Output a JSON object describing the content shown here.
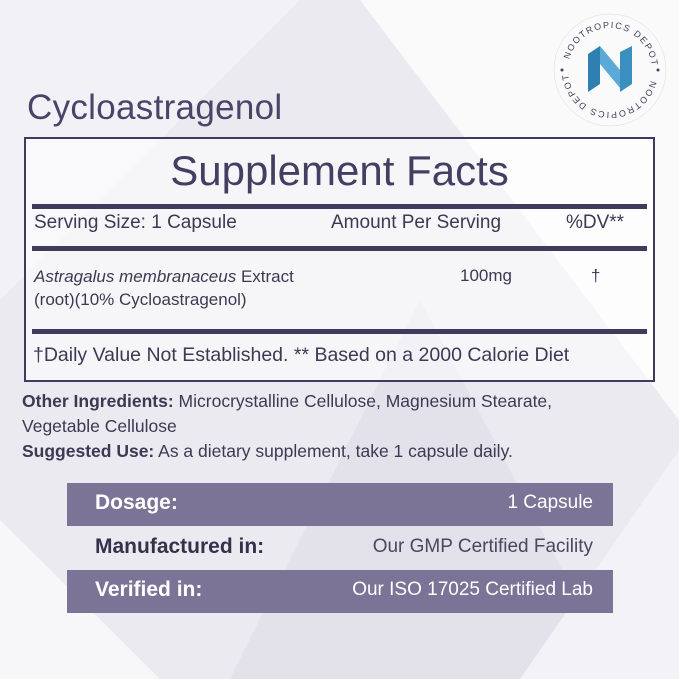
{
  "product_name": "Cycloastragenol",
  "brand_logo": {
    "text": "NOOTROPICS DEPOT",
    "icon": "nootropics-depot-n-logo",
    "color": "#3b8fc0"
  },
  "facts": {
    "title": "Supplement Facts",
    "serving_size": "Serving Size: 1 Capsule",
    "amount_header": "Amount Per Serving",
    "dv_header": "%DV**",
    "ingredient": {
      "name_italic": "Astragalus membranaceus",
      "name_rest": " Extract",
      "detail": "(root)(10% Cycloastragenol)",
      "amount": "100mg",
      "dv": "†"
    },
    "footnote": "†Daily Value Not Established. ** Based on a 2000 Calorie Diet"
  },
  "other_ingredients": {
    "label": "Other Ingredients:",
    "line1": " Microcrystalline Cellulose, Magnesium Stearate,",
    "line2": "Vegetable Cellulose"
  },
  "suggested_use": {
    "label": "Suggested Use:",
    "text": " As a dietary supplement, take 1 capsule daily."
  },
  "info_rows": [
    {
      "label": "Dosage:",
      "value": "1 Capsule"
    },
    {
      "label": "Manufactured in:",
      "value": "Our GMP Certified Facility"
    },
    {
      "label": "Verified in:",
      "value": "Our ISO 17025 Certified Lab"
    }
  ],
  "colors": {
    "text": "#3c3953",
    "rule": "#3f3b5c",
    "bar": "#7b7497",
    "background": "#ebeaf0"
  }
}
